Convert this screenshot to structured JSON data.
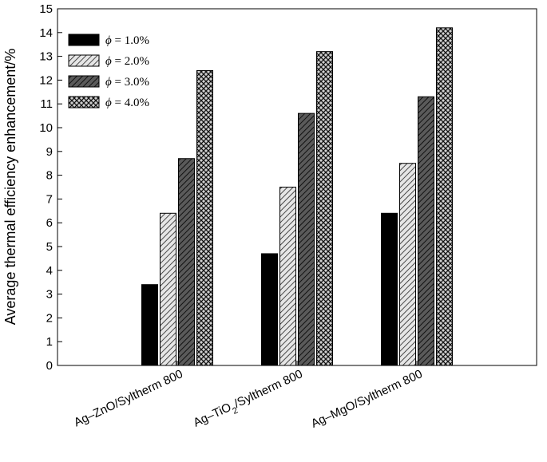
{
  "chart_data": {
    "type": "bar",
    "title": "",
    "ylabel": "Average thermal efficiency enhancement/%",
    "xlabel": "",
    "ylim": [
      0,
      15
    ],
    "yticks": [
      0,
      1,
      2,
      3,
      4,
      5,
      6,
      7,
      8,
      9,
      10,
      11,
      12,
      13,
      14,
      15
    ],
    "grid": false,
    "legend_position": "top-left",
    "categories": [
      {
        "pre": "Ag–ZnO/Syltherm 800",
        "sub": "",
        "post": ""
      },
      {
        "pre": "Ag–TiO",
        "sub": "2",
        "post": "/Syltherm 800"
      },
      {
        "pre": "Ag–MgO/Syltherm 800",
        "sub": "",
        "post": ""
      }
    ],
    "series": [
      {
        "name": "ϕ = 1.0%",
        "symbol": "ϕ",
        "text": " = 1.0%",
        "values": [
          3.4,
          4.7,
          6.4
        ],
        "pattern": "solid"
      },
      {
        "name": "ϕ = 2.0%",
        "symbol": "ϕ",
        "text": " = 2.0%",
        "values": [
          6.4,
          7.5,
          8.5
        ],
        "pattern": "light-diagonal"
      },
      {
        "name": "ϕ = 3.0%",
        "symbol": "ϕ",
        "text": " = 3.0%",
        "values": [
          8.7,
          10.6,
          11.3
        ],
        "pattern": "dark-diagonal"
      },
      {
        "name": "ϕ = 4.0%",
        "symbol": "ϕ",
        "text": " = 4.0%",
        "values": [
          12.4,
          13.2,
          14.2
        ],
        "pattern": "crosshatch"
      }
    ]
  }
}
